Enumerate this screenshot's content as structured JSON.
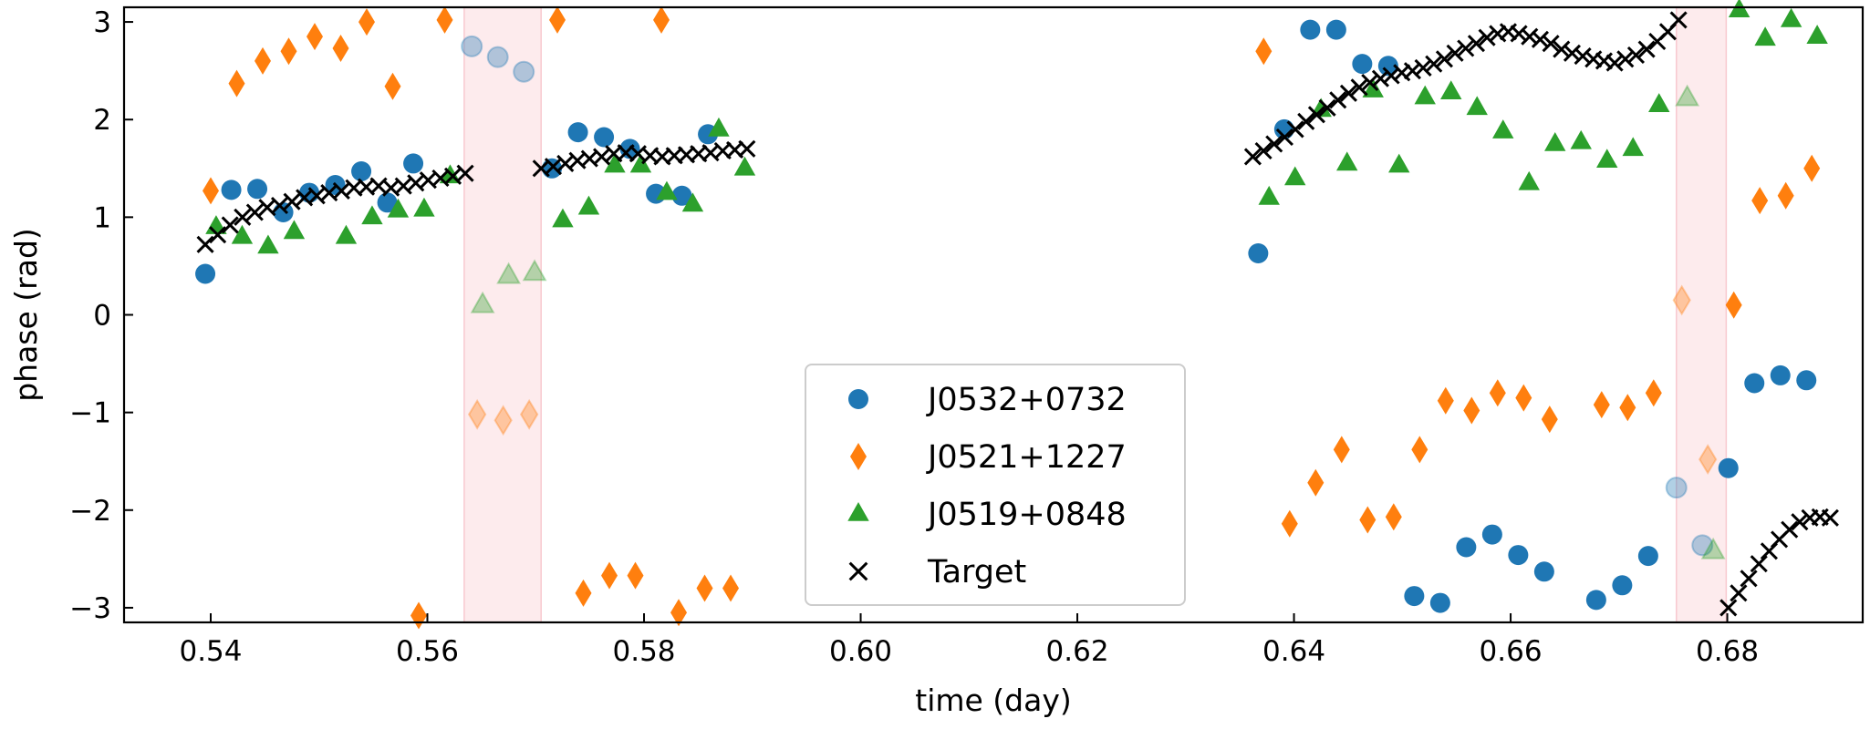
{
  "chart_data": {
    "type": "scatter",
    "xlabel": "time (day)",
    "ylabel": "phase (rad)",
    "xlim": [
      0.532,
      0.6925
    ],
    "ylim": [
      -3.15,
      3.15
    ],
    "xticks": [
      0.54,
      0.56,
      0.58,
      0.6,
      0.62,
      0.64,
      0.66,
      0.68
    ],
    "xtick_labels": [
      "0.54",
      "0.56",
      "0.58",
      "0.60",
      "0.62",
      "0.64",
      "0.66",
      "0.68"
    ],
    "yticks": [
      -3,
      -2,
      -1,
      0,
      1,
      2,
      3
    ],
    "ytick_labels": [
      "−3",
      "−2",
      "−1",
      "0",
      "1",
      "2",
      "3"
    ],
    "grid": false,
    "legend_position": "lower-center",
    "flagged_intervals": [
      [
        0.5634,
        0.5705
      ],
      [
        0.6753,
        0.6799
      ]
    ],
    "series": [
      {
        "name": "J0532+0732",
        "marker": "circle",
        "color": "#1f77b4",
        "points": [
          [
            0.5395,
            0.42
          ],
          [
            0.5419,
            1.28
          ],
          [
            0.5443,
            1.29
          ],
          [
            0.5467,
            1.05
          ],
          [
            0.5491,
            1.25
          ],
          [
            0.5515,
            1.33
          ],
          [
            0.5539,
            1.47
          ],
          [
            0.5563,
            1.15
          ],
          [
            0.5587,
            1.55
          ],
          [
            0.5715,
            1.5
          ],
          [
            0.5739,
            1.87
          ],
          [
            0.5763,
            1.82
          ],
          [
            0.5787,
            1.7
          ],
          [
            0.5811,
            1.24
          ],
          [
            0.5835,
            1.22
          ],
          [
            0.5859,
            1.85
          ],
          [
            0.6367,
            0.63
          ],
          [
            0.6391,
            1.9
          ],
          [
            0.6415,
            2.92
          ],
          [
            0.6439,
            2.92
          ],
          [
            0.6463,
            2.57
          ],
          [
            0.6487,
            2.55
          ],
          [
            0.6511,
            -2.88
          ],
          [
            0.6535,
            -2.95
          ],
          [
            0.6559,
            -2.38
          ],
          [
            0.6583,
            -2.25
          ],
          [
            0.6607,
            -2.46
          ],
          [
            0.6631,
            -2.63
          ],
          [
            0.6679,
            -2.92
          ],
          [
            0.6703,
            -2.77
          ],
          [
            0.6727,
            -2.47
          ],
          [
            0.6801,
            -1.57
          ],
          [
            0.6825,
            -0.7
          ],
          [
            0.6849,
            -0.62
          ],
          [
            0.6873,
            -0.67
          ]
        ],
        "flagged_points": [
          [
            0.5641,
            2.75
          ],
          [
            0.5665,
            2.64
          ],
          [
            0.5689,
            2.49
          ],
          [
            0.6753,
            -1.77
          ],
          [
            0.6777,
            -2.36
          ]
        ]
      },
      {
        "name": "J0521+1227",
        "marker": "diamond",
        "color": "#ff7f0e",
        "points": [
          [
            0.54,
            1.27
          ],
          [
            0.5424,
            2.37
          ],
          [
            0.5448,
            2.6
          ],
          [
            0.5472,
            2.7
          ],
          [
            0.5496,
            2.85
          ],
          [
            0.552,
            2.73
          ],
          [
            0.5544,
            3.0
          ],
          [
            0.5568,
            2.34
          ],
          [
            0.5592,
            -3.08
          ],
          [
            0.5616,
            3.02
          ],
          [
            0.572,
            3.02
          ],
          [
            0.5744,
            -2.85
          ],
          [
            0.5768,
            -2.67
          ],
          [
            0.5792,
            -2.67
          ],
          [
            0.5816,
            3.02
          ],
          [
            0.5832,
            -3.05
          ],
          [
            0.5856,
            -2.8
          ],
          [
            0.588,
            -2.8
          ],
          [
            0.6372,
            2.7
          ],
          [
            0.6396,
            -2.14
          ],
          [
            0.642,
            -1.72
          ],
          [
            0.6444,
            -1.38
          ],
          [
            0.6468,
            -2.1
          ],
          [
            0.6492,
            -2.07
          ],
          [
            0.6516,
            -1.38
          ],
          [
            0.654,
            -0.88
          ],
          [
            0.6564,
            -0.98
          ],
          [
            0.6588,
            -0.8
          ],
          [
            0.6612,
            -0.85
          ],
          [
            0.6636,
            -1.07
          ],
          [
            0.6684,
            -0.92
          ],
          [
            0.6708,
            -0.95
          ],
          [
            0.6732,
            -0.8
          ],
          [
            0.6806,
            0.1
          ],
          [
            0.683,
            1.17
          ],
          [
            0.6854,
            1.22
          ],
          [
            0.6878,
            1.5
          ]
        ],
        "flagged_points": [
          [
            0.5646,
            -1.02
          ],
          [
            0.567,
            -1.08
          ],
          [
            0.5694,
            -1.02
          ],
          [
            0.6758,
            0.15
          ],
          [
            0.6782,
            -1.48
          ]
        ]
      },
      {
        "name": "J0519+0848",
        "marker": "triangle",
        "color": "#2ca02c",
        "points": [
          [
            0.5405,
            0.9
          ],
          [
            0.5429,
            0.8
          ],
          [
            0.5453,
            0.7
          ],
          [
            0.5477,
            0.85
          ],
          [
            0.5525,
            0.8
          ],
          [
            0.5549,
            1.0
          ],
          [
            0.5573,
            1.07
          ],
          [
            0.5597,
            1.08
          ],
          [
            0.5621,
            1.42
          ],
          [
            0.5725,
            0.97
          ],
          [
            0.5749,
            1.1
          ],
          [
            0.5773,
            1.53
          ],
          [
            0.5797,
            1.53
          ],
          [
            0.5821,
            1.25
          ],
          [
            0.5845,
            1.13
          ],
          [
            0.5869,
            1.9
          ],
          [
            0.5893,
            1.5
          ],
          [
            0.6377,
            1.2
          ],
          [
            0.6401,
            1.4
          ],
          [
            0.6425,
            2.1
          ],
          [
            0.6449,
            1.55
          ],
          [
            0.6473,
            2.3
          ],
          [
            0.6497,
            1.53
          ],
          [
            0.6521,
            2.23
          ],
          [
            0.6545,
            2.28
          ],
          [
            0.6569,
            2.12
          ],
          [
            0.6593,
            1.88
          ],
          [
            0.6617,
            1.35
          ],
          [
            0.6641,
            1.75
          ],
          [
            0.6665,
            1.77
          ],
          [
            0.6689,
            1.58
          ],
          [
            0.6713,
            1.7
          ],
          [
            0.6737,
            2.15
          ],
          [
            0.6811,
            3.12
          ],
          [
            0.6835,
            2.83
          ],
          [
            0.6859,
            3.02
          ],
          [
            0.6883,
            2.85
          ]
        ],
        "flagged_points": [
          [
            0.5651,
            0.1
          ],
          [
            0.5675,
            0.4
          ],
          [
            0.5699,
            0.43
          ],
          [
            0.6763,
            2.22
          ],
          [
            0.6787,
            -2.42
          ]
        ]
      },
      {
        "name": "Target",
        "marker": "x",
        "color": "#000000",
        "segments": [
          {
            "x_start": 0.5395,
            "x_end": 0.5635,
            "y": [
              0.72,
              0.82,
              0.92,
              1.0,
              1.05,
              1.1,
              1.12,
              1.16,
              1.2,
              1.22,
              1.25,
              1.27,
              1.3,
              1.31,
              1.32,
              1.3,
              1.32,
              1.35,
              1.38,
              1.4,
              1.42,
              1.45
            ]
          },
          {
            "x_start": 0.5705,
            "x_end": 0.5895,
            "y": [
              1.5,
              1.52,
              1.55,
              1.58,
              1.6,
              1.62,
              1.65,
              1.66,
              1.65,
              1.63,
              1.62,
              1.63,
              1.64,
              1.65,
              1.66,
              1.68,
              1.69,
              1.7
            ]
          },
          {
            "x_start": 0.6362,
            "x_end": 0.6755,
            "y": [
              1.62,
              1.68,
              1.75,
              1.82,
              1.9,
              1.98,
              2.05,
              2.12,
              2.2,
              2.27,
              2.33,
              2.38,
              2.42,
              2.45,
              2.48,
              2.5,
              2.53,
              2.57,
              2.62,
              2.68,
              2.73,
              2.78,
              2.84,
              2.88,
              2.9,
              2.88,
              2.85,
              2.82,
              2.78,
              2.72,
              2.68,
              2.65,
              2.62,
              2.6,
              2.58,
              2.62,
              2.66,
              2.72,
              2.8,
              2.9,
              3.02
            ]
          },
          {
            "x_start": 0.6801,
            "x_end": 0.6895,
            "y": [
              -3.0,
              -2.85,
              -2.7,
              -2.55,
              -2.42,
              -2.3,
              -2.2,
              -2.12,
              -2.08,
              -2.07,
              -2.08
            ]
          }
        ]
      }
    ]
  }
}
